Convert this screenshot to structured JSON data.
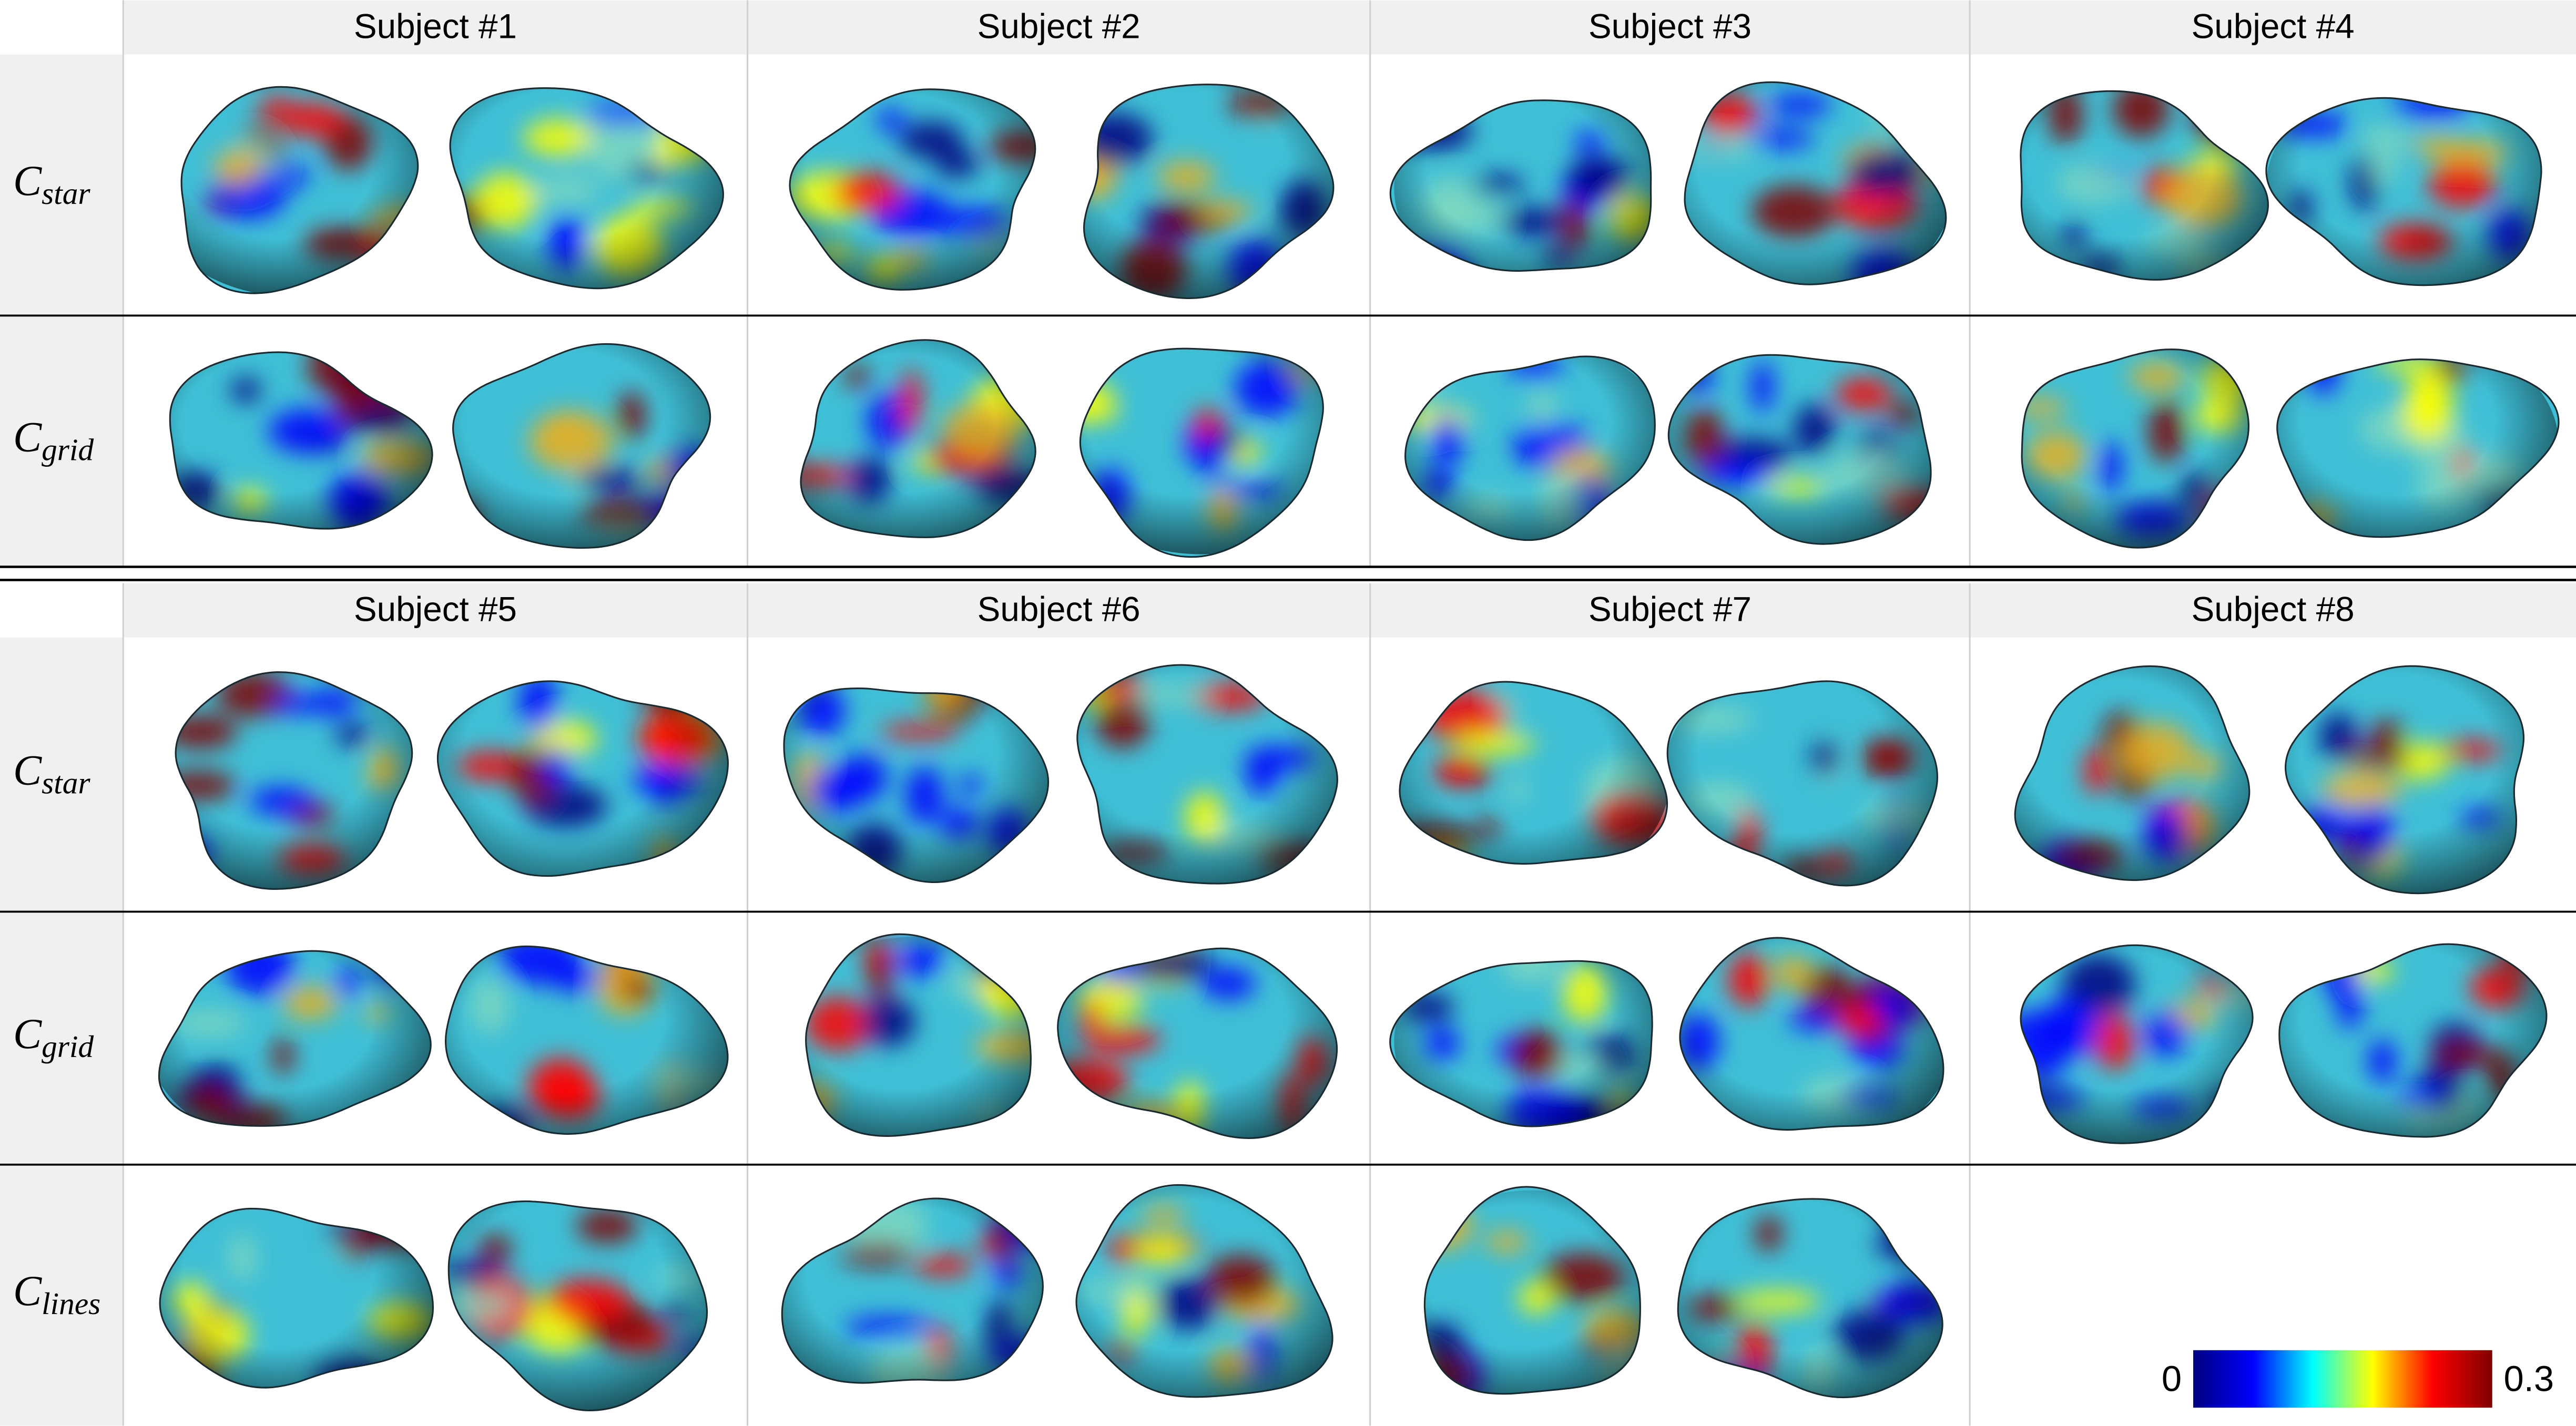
{
  "panels": [
    {
      "subjects": [
        "Subject #1",
        "Subject #2",
        "Subject #3",
        "Subject #4"
      ],
      "rows": [
        {
          "label": {
            "base": "C",
            "sub": "star"
          }
        },
        {
          "label": {
            "base": "C",
            "sub": "grid"
          }
        }
      ]
    },
    {
      "subjects": [
        "Subject #5",
        "Subject #6",
        "Subject #7",
        "Subject #8"
      ],
      "rows": [
        {
          "label": {
            "base": "C",
            "sub": "star"
          }
        },
        {
          "label": {
            "base": "C",
            "sub": "grid"
          }
        },
        {
          "label": {
            "base": "C",
            "sub": "lines"
          }
        }
      ]
    }
  ],
  "colorbar": {
    "min": 0,
    "max": 0.3,
    "colors": [
      "#00007f",
      "#0000ff",
      "#00ffff",
      "#ffff00",
      "#ff0000",
      "#7f0000"
    ]
  }
}
